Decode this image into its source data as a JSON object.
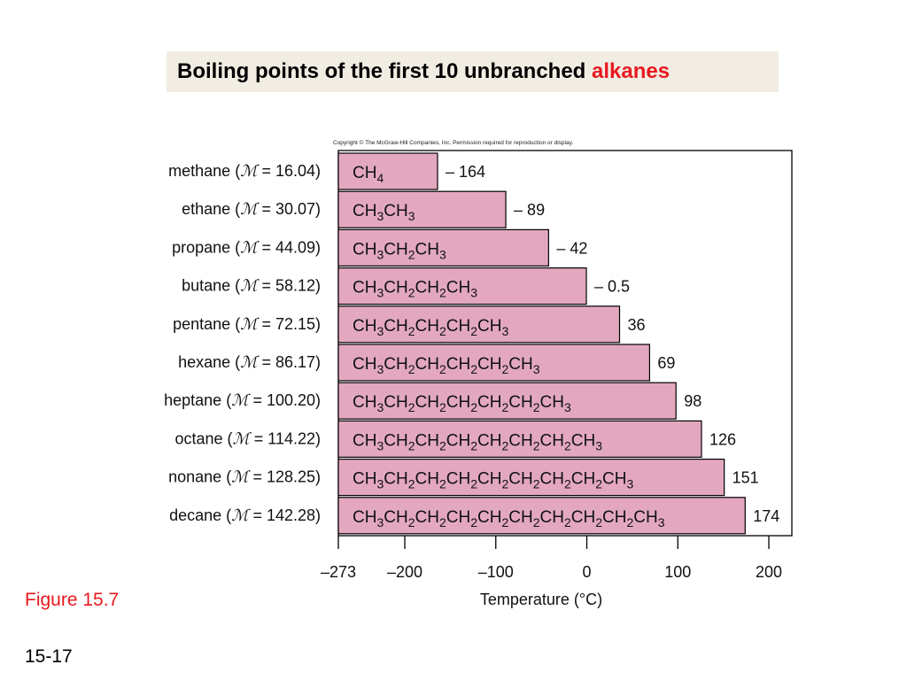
{
  "header": {
    "title_main": "Boiling points of the first 10 unbranched ",
    "title_accent": "alkanes"
  },
  "copyright": "Copyright © The McGraw-Hill Companies, Inc. Permission required for reproduction or display.",
  "figure_label": "Figure 15.7",
  "slide_number": "15-17",
  "colors": {
    "bar_fill": "#e3a8c0",
    "accent": "#e8191f",
    "title_bg": "#f2ede3"
  },
  "chart_data": {
    "type": "bar",
    "orientation": "horizontal",
    "xlabel": "Temperature (°C)",
    "xlim": [
      -273,
      230
    ],
    "xticks": [
      -273,
      -200,
      -100,
      0,
      100,
      200
    ],
    "xtick_labels": [
      "–273",
      "–200",
      "–100",
      "0",
      "100",
      "200"
    ],
    "grid": false,
    "categories": [
      {
        "name": "methane",
        "mass": "16.04"
      },
      {
        "name": "ethane",
        "mass": "30.07"
      },
      {
        "name": "propane",
        "mass": "44.09"
      },
      {
        "name": "butane",
        "mass": "58.12"
      },
      {
        "name": "pentane",
        "mass": "72.15"
      },
      {
        "name": "hexane",
        "mass": "86.17"
      },
      {
        "name": "heptane",
        "mass": "100.20"
      },
      {
        "name": "octane",
        "mass": "114.22"
      },
      {
        "name": "nonane",
        "mass": "128.25"
      },
      {
        "name": "decane",
        "mass": "142.28"
      }
    ],
    "mass_symbol": "ℳ",
    "values": [
      -164,
      -89,
      -42,
      -0.5,
      36,
      69,
      98,
      126,
      151,
      174
    ],
    "value_labels": [
      "– 164",
      "– 89",
      "– 42",
      "– 0.5",
      "36",
      "69",
      "98",
      "126",
      "151",
      "174"
    ],
    "formulas": [
      "CH4",
      "CH3CH3",
      "CH3CH2CH3",
      "CH3CH2CH2CH3",
      "CH3CH2CH2CH2CH3",
      "CH3CH2CH2CH2CH2CH3",
      "CH3CH2CH2CH2CH2CH2CH3",
      "CH3CH2CH2CH2CH2CH2CH2CH3",
      "CH3CH2CH2CH2CH2CH2CH2CH2CH3",
      "CH3CH2CH2CH2CH2CH2CH2CH2CH2CH3"
    ]
  }
}
